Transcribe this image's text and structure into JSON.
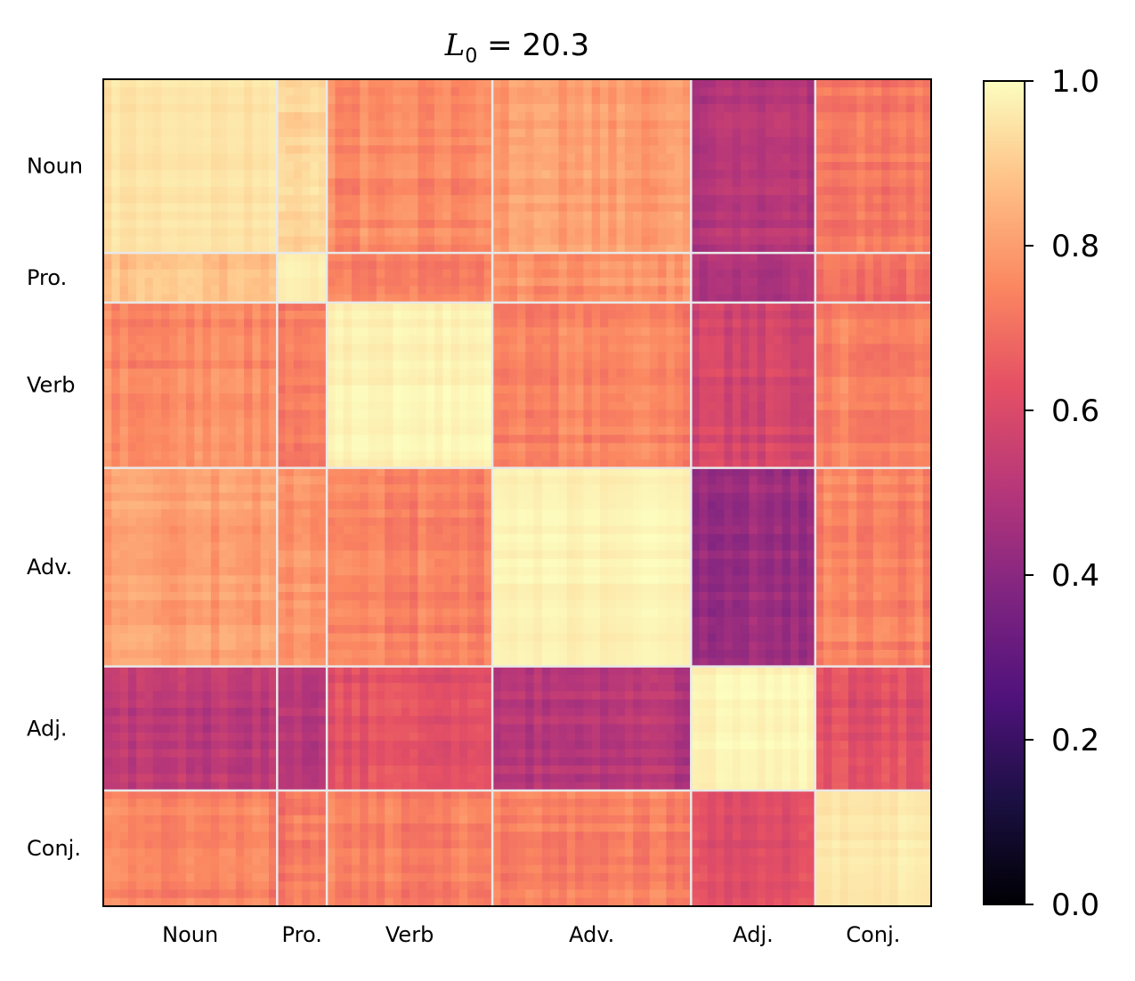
{
  "chart_data": {
    "type": "heatmap",
    "title": {
      "symbol": "L",
      "subscript": "0",
      "equals": " = ",
      "value": "20.3"
    },
    "categories": [
      "Noun",
      "Pro.",
      "Verb",
      "Adv.",
      "Adj.",
      "Conj."
    ],
    "category_sizes": [
      21,
      6,
      20,
      24,
      15,
      14
    ],
    "block_values": [
      [
        0.9,
        0.92,
        0.76,
        0.8,
        0.5,
        0.72
      ],
      [
        0.88,
        0.94,
        0.74,
        0.78,
        0.5,
        0.7
      ],
      [
        0.76,
        0.74,
        0.96,
        0.74,
        0.58,
        0.74
      ],
      [
        0.8,
        0.78,
        0.74,
        0.95,
        0.44,
        0.74
      ],
      [
        0.52,
        0.52,
        0.62,
        0.5,
        0.97,
        0.62
      ],
      [
        0.74,
        0.72,
        0.74,
        0.74,
        0.62,
        0.92
      ]
    ],
    "xlabel": "",
    "ylabel": "",
    "colorbar": {
      "colormap": "magma",
      "range": [
        0.0,
        1.0
      ],
      "ticks": [
        "0.0",
        "0.2",
        "0.4",
        "0.6",
        "0.8",
        "1.0"
      ]
    },
    "separator_color": "#e8e8e8",
    "grid": false,
    "legend": "colorbar-right"
  }
}
